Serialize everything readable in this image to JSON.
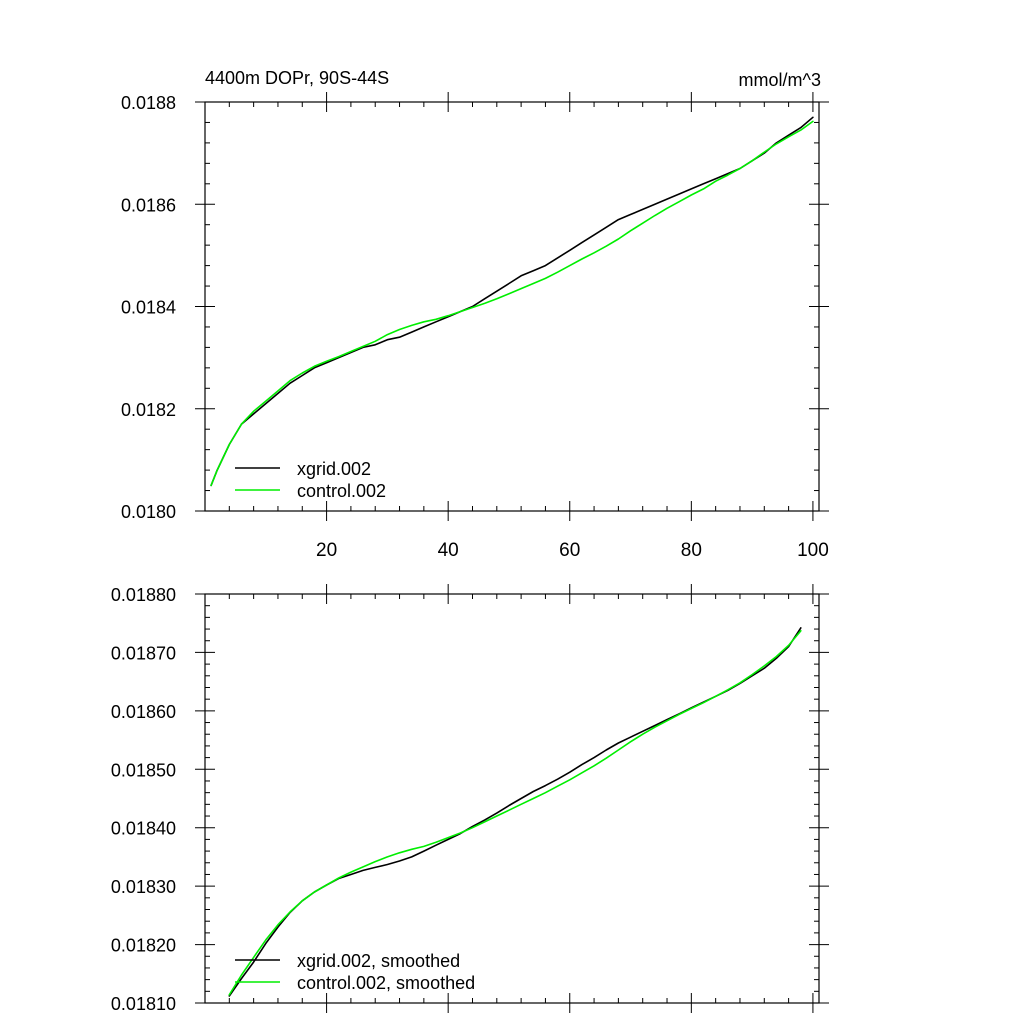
{
  "figure": {
    "title_left": "4400m DOPr, 90S-44S",
    "title_right": "mmol/m^3"
  },
  "colors": {
    "xgrid": "#000000",
    "control": "#00ee00"
  },
  "chart_data": [
    {
      "type": "line",
      "title": "4400m DOPr, 90S-44S",
      "units": "mmol/m^3",
      "xlim": [
        0,
        101
      ],
      "ylim": [
        0.018,
        0.0188
      ],
      "xticks": [
        20,
        40,
        60,
        80,
        100
      ],
      "xtick_labels": [
        "20",
        "40",
        "60",
        "80",
        "100"
      ],
      "yticks": [
        0.018,
        0.0182,
        0.0184,
        0.0186,
        0.0188
      ],
      "ytick_labels": [
        "0.0180",
        "0.0182",
        "0.0184",
        "0.0186",
        "0.0188"
      ],
      "legend_position": "bottom-left",
      "x": [
        1,
        2,
        4,
        6,
        8,
        10,
        12,
        14,
        16,
        18,
        20,
        22,
        24,
        26,
        28,
        30,
        32,
        34,
        36,
        38,
        40,
        42,
        44,
        46,
        48,
        50,
        52,
        54,
        56,
        58,
        60,
        62,
        64,
        66,
        68,
        70,
        72,
        74,
        76,
        78,
        80,
        82,
        84,
        86,
        88,
        90,
        92,
        94,
        96,
        98,
        100
      ],
      "series": [
        {
          "name": "xgrid.002",
          "color": "#000000",
          "values": [
            0.01805,
            0.01808,
            0.01813,
            0.01817,
            0.01819,
            0.01821,
            0.01823,
            0.01825,
            0.018265,
            0.01828,
            0.01829,
            0.0183,
            0.01831,
            0.01832,
            0.018325,
            0.018335,
            0.01834,
            0.01835,
            0.01836,
            0.01837,
            0.01838,
            0.01839,
            0.0184,
            0.018415,
            0.01843,
            0.018445,
            0.01846,
            0.01847,
            0.01848,
            0.018495,
            0.01851,
            0.018525,
            0.01854,
            0.018555,
            0.01857,
            0.01858,
            0.01859,
            0.0186,
            0.01861,
            0.01862,
            0.01863,
            0.01864,
            0.01865,
            0.01866,
            0.01867,
            0.018685,
            0.0187,
            0.01872,
            0.018735,
            0.01875,
            0.01877
          ]
        },
        {
          "name": "control.002",
          "color": "#00ee00",
          "values": [
            0.01805,
            0.01808,
            0.01813,
            0.01817,
            0.018195,
            0.018215,
            0.018235,
            0.018255,
            0.01827,
            0.018283,
            0.018293,
            0.018302,
            0.018312,
            0.018322,
            0.018332,
            0.018345,
            0.018355,
            0.018363,
            0.01837,
            0.018375,
            0.018382,
            0.01839,
            0.018398,
            0.018406,
            0.018415,
            0.018425,
            0.018435,
            0.018445,
            0.018455,
            0.018467,
            0.01848,
            0.018493,
            0.018505,
            0.018518,
            0.018532,
            0.018548,
            0.018563,
            0.018578,
            0.018592,
            0.018605,
            0.018618,
            0.01863,
            0.018645,
            0.018657,
            0.01867,
            0.018685,
            0.018702,
            0.018718,
            0.018732,
            0.018745,
            0.018762
          ]
        }
      ]
    },
    {
      "type": "line",
      "xlim": [
        0,
        101
      ],
      "ylim": [
        0.0181,
        0.0188
      ],
      "xticks": [
        20,
        40,
        60,
        80,
        100
      ],
      "yticks": [
        0.0181,
        0.0182,
        0.0183,
        0.0184,
        0.0185,
        0.0186,
        0.0187,
        0.0188
      ],
      "ytick_labels": [
        "0.01810",
        "0.01820",
        "0.01830",
        "0.01840",
        "0.01850",
        "0.01860",
        "0.01870",
        "0.01880"
      ],
      "legend_position": "bottom-left",
      "x": [
        4,
        6,
        8,
        10,
        12,
        14,
        16,
        18,
        20,
        22,
        24,
        26,
        28,
        30,
        32,
        34,
        36,
        38,
        40,
        42,
        44,
        46,
        48,
        50,
        52,
        54,
        56,
        58,
        60,
        62,
        64,
        66,
        68,
        70,
        72,
        74,
        76,
        78,
        80,
        82,
        84,
        86,
        88,
        90,
        92,
        94,
        96,
        98
      ],
      "series": [
        {
          "name": "xgrid.002, smoothed",
          "color": "#000000",
          "values": [
            0.018112,
            0.018142,
            0.01817,
            0.018202,
            0.01823,
            0.018255,
            0.018275,
            0.01829,
            0.018302,
            0.018313,
            0.01832,
            0.018327,
            0.018332,
            0.018337,
            0.018343,
            0.01835,
            0.01836,
            0.01837,
            0.01838,
            0.01839,
            0.018402,
            0.018413,
            0.018425,
            0.018438,
            0.01845,
            0.018462,
            0.018472,
            0.018483,
            0.018495,
            0.018508,
            0.01852,
            0.018533,
            0.018545,
            0.018555,
            0.018565,
            0.018575,
            0.018585,
            0.018595,
            0.018605,
            0.018615,
            0.018625,
            0.018635,
            0.018647,
            0.01866,
            0.018673,
            0.01869,
            0.01871,
            0.018742
          ]
        },
        {
          "name": "control.002, smoothed",
          "color": "#00ee00",
          "values": [
            0.018114,
            0.018148,
            0.018178,
            0.018208,
            0.018234,
            0.018256,
            0.018275,
            0.01829,
            0.018302,
            0.018314,
            0.018324,
            0.018333,
            0.018342,
            0.01835,
            0.018357,
            0.018363,
            0.018368,
            0.018375,
            0.018383,
            0.018391,
            0.0184,
            0.01841,
            0.01842,
            0.01843,
            0.01844,
            0.01845,
            0.01846,
            0.018471,
            0.018482,
            0.018494,
            0.018506,
            0.018519,
            0.018533,
            0.018547,
            0.01856,
            0.018572,
            0.018583,
            0.018594,
            0.018604,
            0.018614,
            0.018625,
            0.018636,
            0.018648,
            0.018662,
            0.018677,
            0.018693,
            0.018712,
            0.018737
          ]
        }
      ]
    }
  ]
}
